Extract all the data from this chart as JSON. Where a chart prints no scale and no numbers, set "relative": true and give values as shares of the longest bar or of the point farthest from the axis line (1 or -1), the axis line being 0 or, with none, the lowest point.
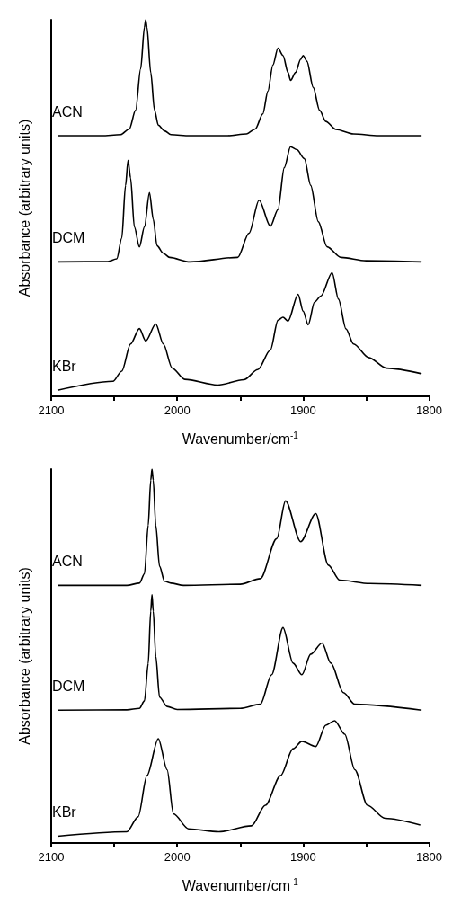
{
  "chart_data": [
    {
      "type": "line",
      "relative": true,
      "xlabel": "Wavenumber/cm$^{-1}$",
      "ylabel": "Absorbance (arbitrary units)",
      "xlim": [
        2100,
        1800
      ],
      "xticks": [
        2100,
        {
          "value": 2050,
          "label": null
        },
        2000,
        {
          "value": 1950,
          "label": null
        },
        1900,
        {
          "value": 1850,
          "label": null
        },
        1800
      ],
      "marker": "none",
      "line_style": "solid",
      "series": [
        {
          "name": "ACN",
          "color": "#000000",
          "x": [
            2095,
            2060,
            2045,
            2038,
            2033,
            2029,
            2026,
            2025,
            2024,
            2021,
            2018,
            2015,
            2010,
            2005,
            1990,
            1960,
            1945,
            1938,
            1932,
            1928,
            1924,
            1920,
            1916,
            1912,
            1910,
            1906,
            1902,
            1900,
            1897,
            1892,
            1887,
            1882,
            1874,
            1860,
            1840,
            1806
          ],
          "values": [
            0.692,
            0.692,
            0.695,
            0.71,
            0.76,
            0.87,
            0.98,
            1.0,
            0.98,
            0.86,
            0.76,
            0.72,
            0.705,
            0.695,
            0.692,
            0.692,
            0.697,
            0.71,
            0.75,
            0.81,
            0.88,
            0.925,
            0.905,
            0.86,
            0.839,
            0.86,
            0.895,
            0.905,
            0.89,
            0.82,
            0.76,
            0.73,
            0.709,
            0.697,
            0.692,
            0.692
          ]
        },
        {
          "name": "DCM",
          "color": "#000000",
          "x": [
            2095,
            2055,
            2048,
            2044,
            2041,
            2039,
            2037,
            2034,
            2030,
            2026,
            2022,
            2019,
            2016,
            2011,
            2006,
            1990,
            1952,
            1943,
            1935,
            1926,
            1920,
            1915,
            1910,
            1905,
            1899,
            1894,
            1888,
            1881,
            1870,
            1850,
            1806
          ],
          "values": [
            0.357,
            0.358,
            0.365,
            0.42,
            0.56,
            0.627,
            0.58,
            0.45,
            0.397,
            0.45,
            0.541,
            0.47,
            0.4,
            0.38,
            0.369,
            0.357,
            0.369,
            0.433,
            0.521,
            0.452,
            0.496,
            0.607,
            0.663,
            0.655,
            0.631,
            0.56,
            0.464,
            0.397,
            0.369,
            0.36,
            0.357
          ]
        },
        {
          "name": "KBr",
          "color": "#000000",
          "x": [
            2095,
            2051,
            2044,
            2037,
            2030,
            2025,
            2017,
            2011,
            2004,
            1994,
            1968,
            1947,
            1936,
            1926,
            1920,
            1916,
            1912,
            1904,
            1900,
            1896,
            1891,
            1886,
            1877,
            1872,
            1866,
            1860,
            1848,
            1834,
            1806
          ],
          "values": [
            0.016,
            0.04,
            0.067,
            0.139,
            0.18,
            0.147,
            0.192,
            0.139,
            0.075,
            0.045,
            0.03,
            0.044,
            0.071,
            0.123,
            0.202,
            0.21,
            0.2,
            0.271,
            0.226,
            0.19,
            0.25,
            0.266,
            0.328,
            0.258,
            0.179,
            0.139,
            0.103,
            0.075,
            0.06
          ]
        }
      ]
    },
    {
      "type": "line",
      "relative": true,
      "xlabel": "Wavenumber/cm$^{-1}$",
      "ylabel": "Absorbance (arbitrary units)",
      "xlim": [
        2100,
        1800
      ],
      "xticks": [
        2100,
        {
          "value": 2050,
          "label": null
        },
        2000,
        {
          "value": 1950,
          "label": null
        },
        1900,
        {
          "value": 1850,
          "label": null
        },
        1800
      ],
      "marker": "none",
      "line_style": "solid",
      "series": [
        {
          "name": "ACN",
          "color": "#000000",
          "x": [
            2095,
            2040,
            2030,
            2026,
            2023,
            2021,
            2020,
            2019,
            2017,
            2014,
            2010,
            2005,
            1995,
            1950,
            1934,
            1921,
            1914,
            1902,
            1890,
            1880,
            1871,
            1847,
            1806
          ],
          "values": [
            0.689,
            0.689,
            0.695,
            0.72,
            0.85,
            0.97,
            1.0,
            0.97,
            0.85,
            0.74,
            0.7,
            0.695,
            0.689,
            0.692,
            0.707,
            0.814,
            0.915,
            0.806,
            0.881,
            0.743,
            0.703,
            0.694,
            0.689
          ]
        },
        {
          "name": "DCM",
          "color": "#000000",
          "x": [
            2095,
            2040,
            2030,
            2026,
            2023,
            2021,
            2020,
            2019,
            2017,
            2014,
            2008,
            2000,
            1950,
            1934,
            1925,
            1916,
            1908,
            1901,
            1894,
            1885,
            1878,
            1868,
            1859,
            1806
          ],
          "values": [
            0.355,
            0.356,
            0.36,
            0.38,
            0.48,
            0.62,
            0.664,
            0.62,
            0.5,
            0.39,
            0.365,
            0.357,
            0.36,
            0.371,
            0.45,
            0.576,
            0.481,
            0.45,
            0.505,
            0.535,
            0.481,
            0.402,
            0.371,
            0.355
          ]
        },
        {
          "name": "KBr",
          "color": "#000000",
          "x": [
            2095,
            2040,
            2031,
            2024,
            2015,
            2008,
            2003,
            1991,
            1967,
            1941,
            1930,
            1918,
            1908,
            1901,
            1890,
            1882,
            1875,
            1867,
            1859,
            1849,
            1835,
            1807
          ],
          "values": [
            0.018,
            0.03,
            0.07,
            0.18,
            0.279,
            0.196,
            0.078,
            0.038,
            0.03,
            0.046,
            0.101,
            0.18,
            0.252,
            0.272,
            0.258,
            0.315,
            0.327,
            0.291,
            0.196,
            0.101,
            0.066,
            0.048
          ]
        }
      ]
    }
  ]
}
